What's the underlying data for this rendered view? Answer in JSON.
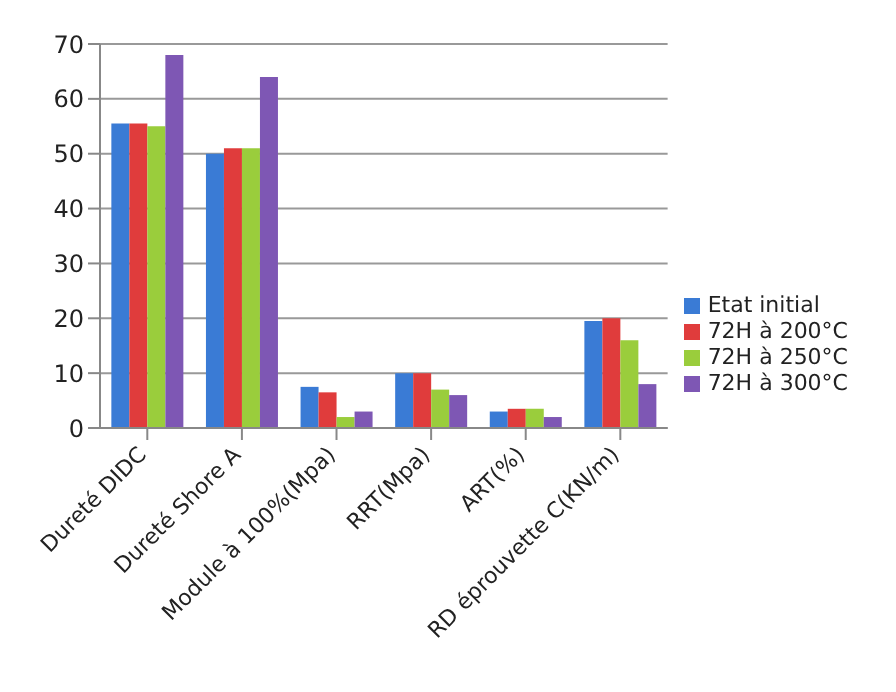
{
  "chart_data": {
    "type": "bar",
    "categories": [
      "Dureté DIDC",
      "Dureté Shore A",
      "Module à 100%(Mpa)",
      "RRT(Mpa)",
      "ART(%)",
      "RD éprouvette C(KN/m)"
    ],
    "series": [
      {
        "name": "Etat initial",
        "color": "#3a7bd5",
        "values": [
          55.5,
          50,
          7.5,
          10,
          3,
          19.5
        ]
      },
      {
        "name": "72H à 200°C",
        "color": "#e03c3c",
        "values": [
          55.5,
          51,
          6.5,
          10,
          3.5,
          20
        ]
      },
      {
        "name": "72H à 250°C",
        "color": "#9acd3c",
        "values": [
          55,
          51,
          2,
          7,
          3.5,
          16
        ]
      },
      {
        "name": "72H à 300°C",
        "color": "#7e57b4",
        "values": [
          68,
          64,
          3,
          6,
          2,
          8
        ]
      }
    ],
    "ylim": [
      0,
      70
    ],
    "yticks": [
      0,
      10,
      20,
      30,
      40,
      50,
      60,
      70
    ],
    "grid": "y",
    "legend": "right"
  }
}
